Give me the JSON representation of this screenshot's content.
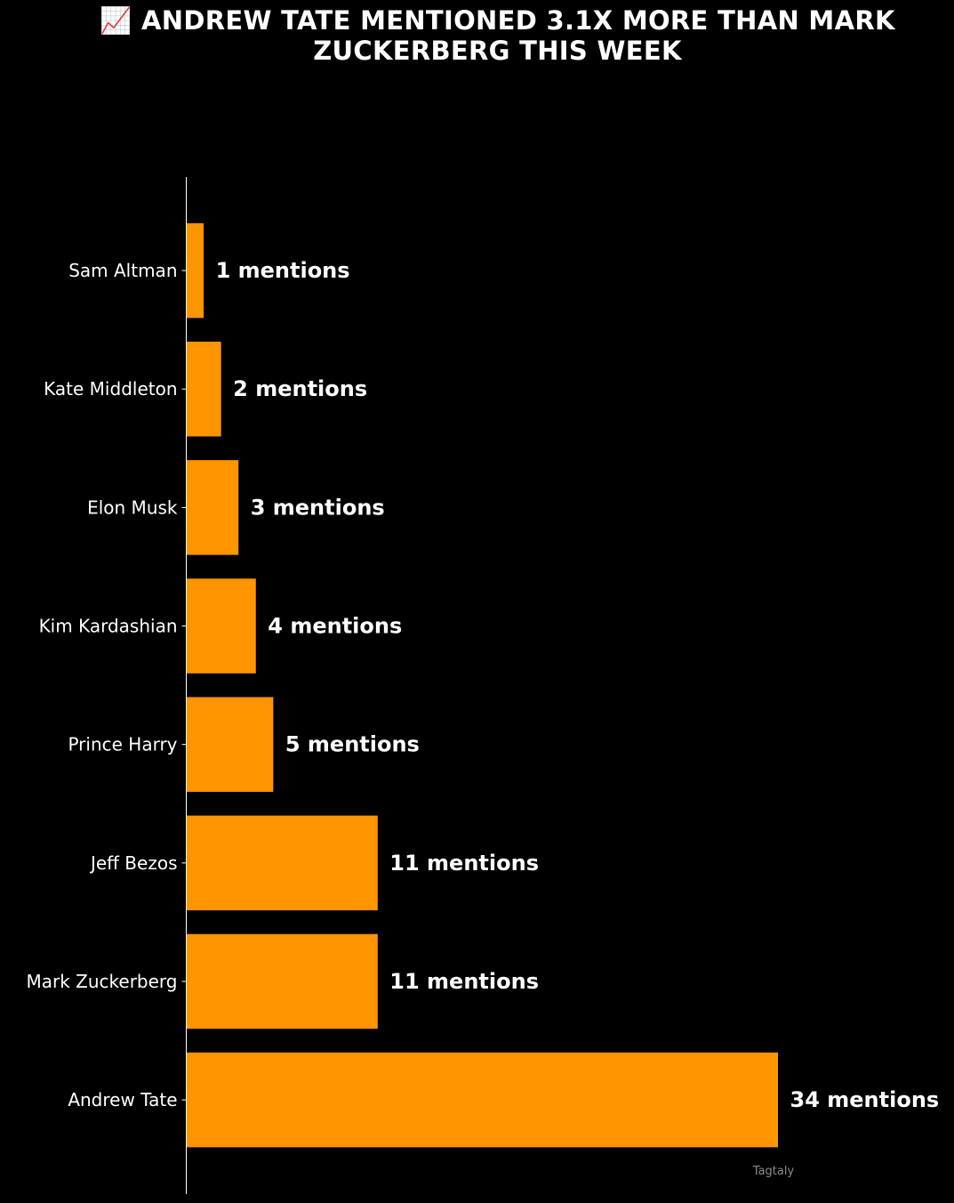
{
  "chart_data": {
    "type": "bar",
    "orientation": "horizontal",
    "title": "📈 ANDREW TATE MENTIONED 3.1X MORE THAN MARK ZUCKERBERG THIS WEEK",
    "categories": [
      "Sam Altman",
      "Kate Middleton",
      "Elon Musk",
      "Kim Kardashian",
      "Prince Harry",
      "Jeff Bezos",
      "Mark Zuckerberg",
      "Andrew Tate"
    ],
    "values": [
      1,
      2,
      3,
      4,
      5,
      11,
      11,
      34
    ],
    "value_labels": [
      "1 mentions",
      "2 mentions",
      "3 mentions",
      "4 mentions",
      "5 mentions",
      "11 mentions",
      "11 mentions",
      "34 mentions"
    ],
    "xlim": [
      0,
      34
    ],
    "xlabel": "",
    "ylabel": "",
    "grid": false,
    "bar_color": "#ff9500",
    "background_color": "#000000",
    "text_color": "#ffffff",
    "watermark": "Tagtaly"
  }
}
